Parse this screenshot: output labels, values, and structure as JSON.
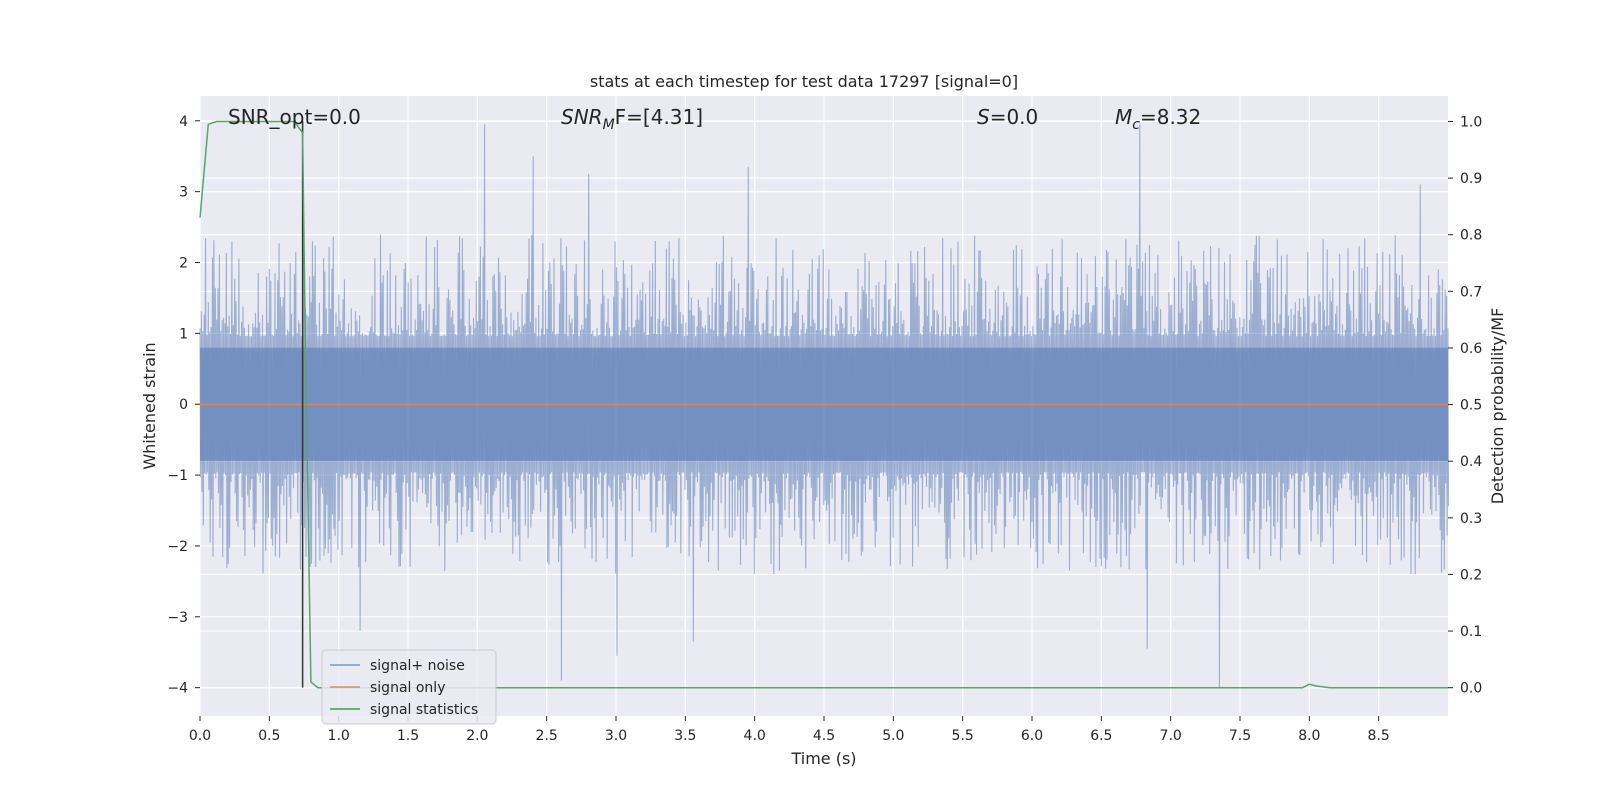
{
  "chart_data": {
    "type": "line",
    "title": "stats at each timestep for test data 17297 [signal=0]",
    "xlabel": "Time (s)",
    "ylabel_left": "Whitened strain",
    "ylabel_right": "Detection probability/MF",
    "xlim": [
      0.0,
      9.0
    ],
    "ylim_left": [
      -4.4,
      4.35
    ],
    "ylim_right": [
      -0.05,
      1.045
    ],
    "x_ticks": [
      "0.0",
      "0.5",
      "1.0",
      "1.5",
      "2.0",
      "2.5",
      "3.0",
      "3.5",
      "4.0",
      "4.5",
      "5.0",
      "5.5",
      "6.0",
      "6.5",
      "7.0",
      "7.5",
      "8.0",
      "8.5"
    ],
    "y_ticks_left": [
      "−4",
      "−3",
      "−2",
      "−1",
      "0",
      "1",
      "2",
      "3",
      "4"
    ],
    "y_ticks_right": [
      "0.0",
      "0.1",
      "0.2",
      "0.3",
      "0.4",
      "0.5",
      "0.6",
      "0.7",
      "0.8",
      "0.9",
      "1.0"
    ],
    "grid": true,
    "annotations": [
      {
        "text": "SNR_opt=0.0"
      },
      {
        "main": "SNR",
        "sub": "M",
        "rest": "F=[4.31]"
      },
      {
        "main": "S",
        "sub": "",
        "rest": "=0.0"
      },
      {
        "main": "M",
        "sub": "c",
        "rest": "=8.32"
      }
    ],
    "legend": {
      "placement": "lower-left",
      "entries": [
        "signal+ noise",
        "signal only",
        "signal statistics"
      ]
    },
    "colors": {
      "noise": "#4c72b0",
      "signal": "#dd8452",
      "stats": "#55a868",
      "marker": "#333333",
      "background": "#eaeaf2"
    },
    "series": [
      {
        "name": "signal+ noise",
        "axis": "left",
        "noise_band": {
          "typical_low": -1.6,
          "typical_high": 1.6,
          "max": 3.95,
          "min": -4.0
        },
        "notable_peaks": [
          {
            "x": 2.05,
            "y": 3.95
          },
          {
            "x": 6.78,
            "y": 3.95
          },
          {
            "x": 2.4,
            "y": 3.5
          },
          {
            "x": 3.95,
            "y": 3.35
          },
          {
            "x": 2.8,
            "y": 3.25
          },
          {
            "x": 8.8,
            "y": 3.1
          },
          {
            "x": 7.35,
            "y": -4.0
          },
          {
            "x": 2.6,
            "y": -3.9
          },
          {
            "x": 3.0,
            "y": -3.55
          },
          {
            "x": 1.15,
            "y": -3.2
          },
          {
            "x": 6.83,
            "y": -3.45
          },
          {
            "x": 3.55,
            "y": -3.35
          }
        ]
      },
      {
        "name": "signal only",
        "axis": "left",
        "points": [
          [
            0.0,
            0.0
          ],
          [
            9.0,
            0.0
          ]
        ]
      },
      {
        "name": "signal statistics",
        "axis": "right",
        "points": [
          [
            0.0,
            0.83
          ],
          [
            0.06,
            0.995
          ],
          [
            0.12,
            1.0
          ],
          [
            0.3,
            1.0
          ],
          [
            0.5,
            1.0
          ],
          [
            0.6,
            1.0
          ],
          [
            0.68,
            1.0
          ],
          [
            0.74,
            0.98
          ],
          [
            0.76,
            0.6
          ],
          [
            0.8,
            0.01
          ],
          [
            0.85,
            0.0
          ],
          [
            2.0,
            0.0
          ],
          [
            4.0,
            0.0
          ],
          [
            6.0,
            0.0
          ],
          [
            7.7,
            0.0
          ],
          [
            7.95,
            0.0
          ],
          [
            8.0,
            0.006
          ],
          [
            8.05,
            0.003
          ],
          [
            8.15,
            0.0
          ],
          [
            9.0,
            0.0
          ]
        ]
      }
    ],
    "marker_line": {
      "x": 0.74,
      "y_top": 4.0,
      "y_bottom": -4.0
    }
  }
}
